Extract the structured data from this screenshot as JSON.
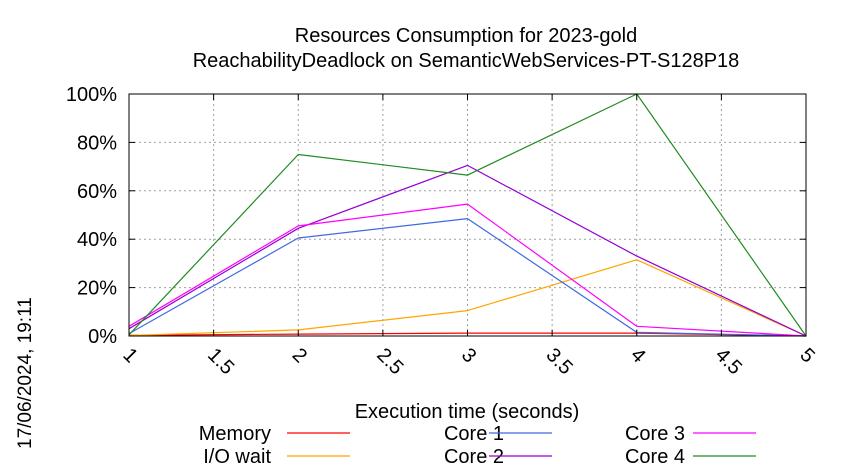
{
  "chart_data": {
    "type": "line",
    "title": "Resources Consumption for 2023-gold",
    "subtitle": "ReachabilityDeadlock on SemanticWebServices-PT-S128P18",
    "xlabel": "Execution time (seconds)",
    "ylabel": "",
    "xlim": [
      1,
      5
    ],
    "ylim": [
      0,
      100
    ],
    "x_ticks": [
      "1",
      "1.5",
      "2",
      "2.5",
      "3",
      "3.5",
      "4",
      "4.5",
      "5"
    ],
    "y_ticks": [
      "0%",
      "20%",
      "40%",
      "60%",
      "80%",
      "100%"
    ],
    "grid": true,
    "legend_position": "bottom",
    "x": [
      1,
      2,
      3,
      4,
      5
    ],
    "series": [
      {
        "name": "Memory",
        "color": "#ff0000",
        "values": [
          0.3,
          0.8,
          1.2,
          1.2,
          0
        ]
      },
      {
        "name": "I/O wait",
        "color": "#ffa500",
        "values": [
          0.2,
          2.5,
          10.5,
          31.5,
          0
        ]
      },
      {
        "name": "Core 1",
        "color": "#4169e1",
        "values": [
          1,
          40.5,
          48.5,
          1.5,
          0
        ]
      },
      {
        "name": "Core 2",
        "color": "#9400d3",
        "values": [
          3,
          44.5,
          70.5,
          33,
          0
        ]
      },
      {
        "name": "Core 3",
        "color": "#ff00ff",
        "values": [
          4,
          45.5,
          54.5,
          4,
          0
        ]
      },
      {
        "name": "Core 4",
        "color": "#228b22",
        "values": [
          0.5,
          75,
          66.5,
          100,
          0
        ]
      }
    ]
  },
  "timestamp": "17/06/2024, 19:11"
}
